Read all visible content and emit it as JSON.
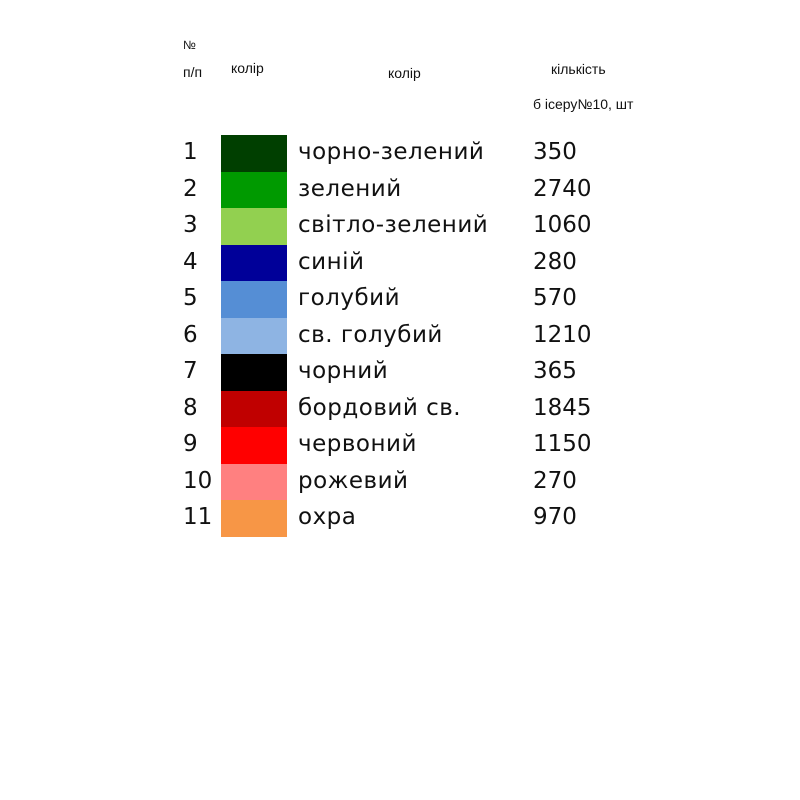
{
  "header": {
    "num_line1": "№",
    "num_line2": "п/п",
    "color_swatch": "колір",
    "color_name": "колір",
    "qty_line1": "кількість",
    "qty_line2": "б ісеру№10, шт"
  },
  "rows": [
    {
      "n": "1",
      "name": "чорно-зелений",
      "qty": "350",
      "color": "#003f00"
    },
    {
      "n": "2",
      "name": "зелений",
      "qty": "2740",
      "color": "#009a00"
    },
    {
      "n": "3",
      "name": "світло-зелений",
      "qty": "1060",
      "color": "#92d050"
    },
    {
      "n": "4",
      "name": "синій",
      "qty": "280",
      "color": "#000099"
    },
    {
      "n": "5",
      "name": "голубий",
      "qty": "570",
      "color": "#558ed5"
    },
    {
      "n": "6",
      "name": "св. голубий",
      "qty": "1210",
      "color": "#8eb4e3"
    },
    {
      "n": "7",
      "name": "чорний",
      "qty": "365",
      "color": "#000000"
    },
    {
      "n": "8",
      "name": "бордовий св.",
      "qty": "1845",
      "color": "#c00000"
    },
    {
      "n": "9",
      "name": "червоний",
      "qty": "1150",
      "color": "#ff0000"
    },
    {
      "n": "10",
      "name": "рожевий",
      "qty": "270",
      "color": "#ff8080"
    },
    {
      "n": "11",
      "name": "охра",
      "qty": "970",
      "color": "#f79646"
    }
  ]
}
